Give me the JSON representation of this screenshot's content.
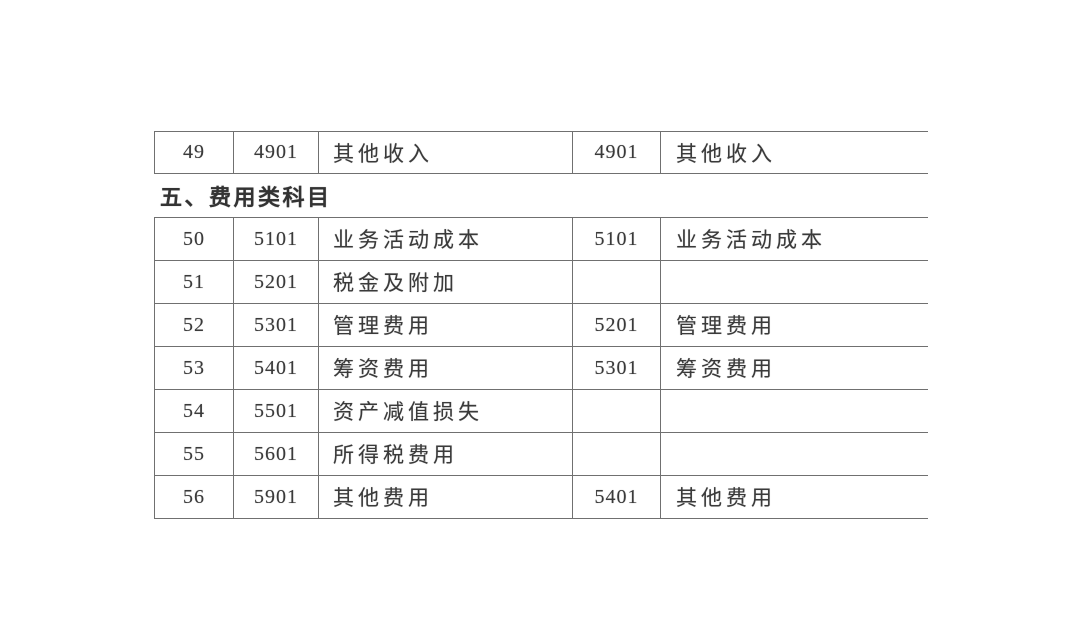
{
  "page": {
    "background_color": "#ffffff"
  },
  "table": {
    "description_colors": {
      "line_color": "#707070",
      "text_color": "#3a3a3a"
    },
    "section_header": "五、费用类科目",
    "rows": [
      {
        "num": "49",
        "code_left": "4901",
        "name_left": "其他收入",
        "code_right": "4901",
        "name_right": "其他收入"
      },
      {
        "num": "50",
        "code_left": "5101",
        "name_left": "业务活动成本",
        "code_right": "5101",
        "name_right": "业务活动成本"
      },
      {
        "num": "51",
        "code_left": "5201",
        "name_left": "税金及附加",
        "code_right": "",
        "name_right": ""
      },
      {
        "num": "52",
        "code_left": "5301",
        "name_left": "管理费用",
        "code_right": "5201",
        "name_right": "管理费用"
      },
      {
        "num": "53",
        "code_left": "5401",
        "name_left": "筹资费用",
        "code_right": "5301",
        "name_right": "筹资费用"
      },
      {
        "num": "54",
        "code_left": "5501",
        "name_left": "资产减值损失",
        "code_right": "",
        "name_right": ""
      },
      {
        "num": "55",
        "code_left": "5601",
        "name_left": "所得税费用",
        "code_right": "",
        "name_right": ""
      },
      {
        "num": "56",
        "code_left": "5901",
        "name_left": "其他费用",
        "code_right": "5401",
        "name_right": "其他费用"
      }
    ]
  }
}
